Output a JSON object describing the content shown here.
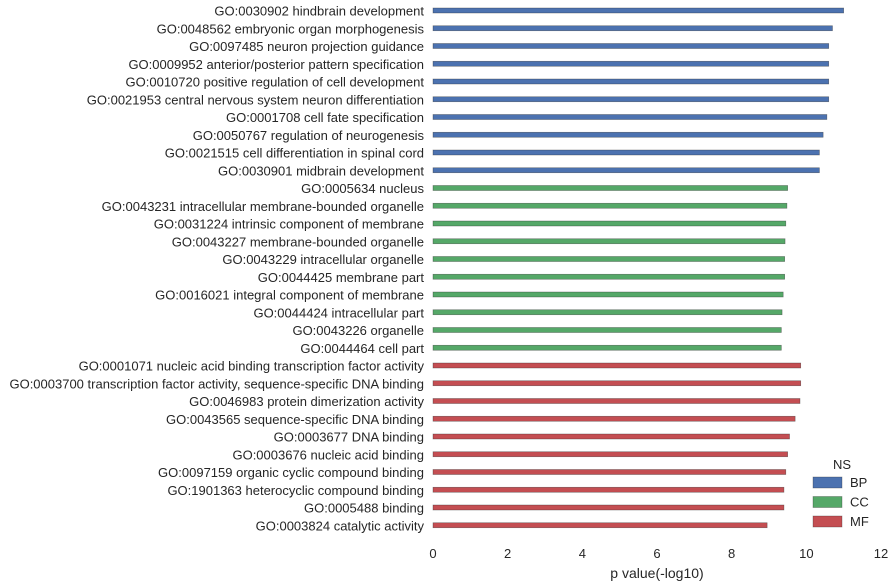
{
  "chart_data": {
    "type": "bar",
    "orientation": "horizontal",
    "xlabel": "p value(-log10)",
    "ylabel": "",
    "xlim": [
      0,
      12
    ],
    "xticks": [
      0,
      2,
      4,
      6,
      8,
      10,
      12
    ],
    "grid": false,
    "legend": {
      "title": "NS",
      "placement": "bottom-right",
      "entries": [
        {
          "name": "BP",
          "color": "#4c72b0"
        },
        {
          "name": "CC",
          "color": "#55a868"
        },
        {
          "name": "MF",
          "color": "#c44e52"
        }
      ]
    },
    "bars": [
      {
        "label": "GO:0030902 hindbrain development",
        "ns": "BP",
        "value": 11.0
      },
      {
        "label": "GO:0048562 embryonic organ morphogenesis",
        "ns": "BP",
        "value": 10.7
      },
      {
        "label": "GO:0097485 neuron projection guidance",
        "ns": "BP",
        "value": 10.6
      },
      {
        "label": "GO:0009952 anterior/posterior pattern specification",
        "ns": "BP",
        "value": 10.6
      },
      {
        "label": "GO:0010720 positive regulation of cell development",
        "ns": "BP",
        "value": 10.6
      },
      {
        "label": "GO:0021953 central nervous system neuron differentiation",
        "ns": "BP",
        "value": 10.6
      },
      {
        "label": "GO:0001708 cell fate specification",
        "ns": "BP",
        "value": 10.55
      },
      {
        "label": "GO:0050767 regulation of neurogenesis",
        "ns": "BP",
        "value": 10.45
      },
      {
        "label": "GO:0021515 cell differentiation in spinal cord",
        "ns": "BP",
        "value": 10.35
      },
      {
        "label": "GO:0030901 midbrain development",
        "ns": "BP",
        "value": 10.35
      },
      {
        "label": "GO:0005634 nucleus",
        "ns": "CC",
        "value": 9.5
      },
      {
        "label": "GO:0043231 intracellular membrane-bounded organelle",
        "ns": "CC",
        "value": 9.48
      },
      {
        "label": "GO:0031224 intrinsic component of membrane",
        "ns": "CC",
        "value": 9.45
      },
      {
        "label": "GO:0043227 membrane-bounded organelle",
        "ns": "CC",
        "value": 9.43
      },
      {
        "label": "GO:0043229 intracellular organelle",
        "ns": "CC",
        "value": 9.42
      },
      {
        "label": "GO:0044425 membrane part",
        "ns": "CC",
        "value": 9.42
      },
      {
        "label": "GO:0016021 integral component of membrane",
        "ns": "CC",
        "value": 9.38
      },
      {
        "label": "GO:0044424 intracellular part",
        "ns": "CC",
        "value": 9.35
      },
      {
        "label": "GO:0043226 organelle",
        "ns": "CC",
        "value": 9.33
      },
      {
        "label": "GO:0044464 cell part",
        "ns": "CC",
        "value": 9.33
      },
      {
        "label": "GO:0001071 nucleic acid binding transcription factor activity",
        "ns": "MF",
        "value": 9.85
      },
      {
        "label": "GO:0003700 transcription factor activity, sequence-specific DNA binding",
        "ns": "MF",
        "value": 9.85
      },
      {
        "label": "GO:0046983 protein dimerization activity",
        "ns": "MF",
        "value": 9.83
      },
      {
        "label": "GO:0043565 sequence-specific DNA binding",
        "ns": "MF",
        "value": 9.7
      },
      {
        "label": "GO:0003677 DNA binding",
        "ns": "MF",
        "value": 9.55
      },
      {
        "label": "GO:0003676 nucleic acid binding",
        "ns": "MF",
        "value": 9.5
      },
      {
        "label": "GO:0097159 organic cyclic compound binding",
        "ns": "MF",
        "value": 9.45
      },
      {
        "label": "GO:1901363 heterocyclic compound binding",
        "ns": "MF",
        "value": 9.4
      },
      {
        "label": "GO:0005488 binding",
        "ns": "MF",
        "value": 9.4
      },
      {
        "label": "GO:0003824 catalytic activity",
        "ns": "MF",
        "value": 8.95
      }
    ]
  }
}
